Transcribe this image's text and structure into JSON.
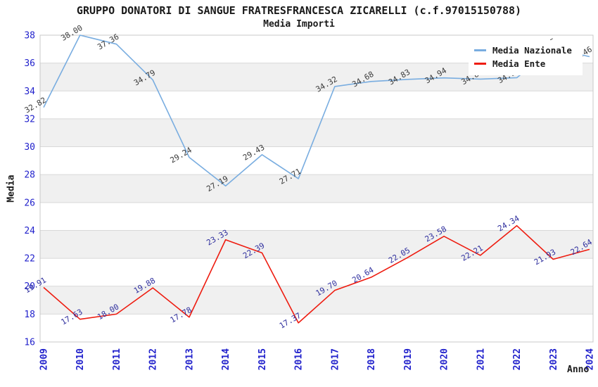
{
  "chart_data": {
    "type": "line",
    "title": "GRUPPO DONATORI DI SANGUE FRATRESFRANCESCA ZICARELLI (c.f.97015150788)",
    "subtitle": "Media Importi",
    "xlabel": "Anno",
    "ylabel": "Media",
    "x": [
      "2009",
      "2010",
      "2011",
      "2012",
      "2013",
      "2014",
      "2015",
      "2016",
      "2017",
      "2018",
      "2019",
      "2020",
      "2021",
      "2022",
      "2023",
      "2024"
    ],
    "ylim": [
      16,
      38
    ],
    "ytick_step": 2,
    "grid": "horizontal-bands-alternating",
    "legend_position": "top-right",
    "series": [
      {
        "name": "Media Nazionale",
        "color": "#79ade0",
        "label_color": "#3a3a3a",
        "values": [
          32.82,
          38.0,
          37.36,
          34.79,
          29.24,
          27.19,
          29.43,
          27.71,
          34.32,
          34.68,
          34.83,
          34.94,
          34.85,
          34.95,
          37.05,
          36.46
        ]
      },
      {
        "name": "Media Ente",
        "color": "#ee1c10",
        "label_color": "#2f2f9e",
        "values": [
          19.91,
          17.63,
          18.0,
          19.88,
          17.78,
          23.33,
          22.39,
          17.37,
          19.7,
          20.64,
          22.05,
          23.58,
          22.21,
          24.34,
          21.93,
          22.64
        ]
      }
    ],
    "colors": {
      "axis_tick_label": "#2222cc",
      "band_gray": "#f0f0f0",
      "gridline": "#d8d8d8",
      "plot_border": "#c8c8c8",
      "background": "#ffffff"
    }
  }
}
